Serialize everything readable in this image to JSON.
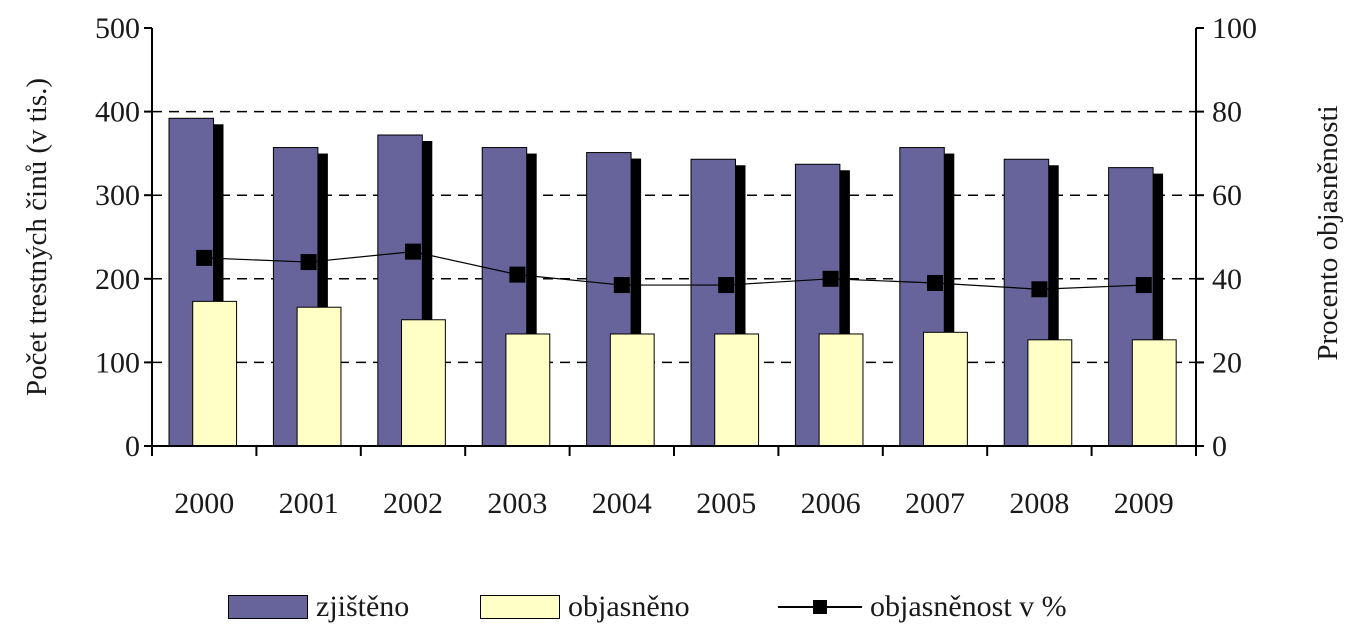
{
  "chart_data": {
    "type": "bar",
    "categories": [
      "2000",
      "2001",
      "2002",
      "2003",
      "2004",
      "2005",
      "2006",
      "2007",
      "2008",
      "2009"
    ],
    "series": [
      {
        "name": "zjištěno",
        "type": "bar",
        "axis": "left",
        "color": "#66649b",
        "values": [
          392,
          357,
          372,
          357,
          351,
          343,
          337,
          357,
          343,
          333
        ]
      },
      {
        "name": "objasněno",
        "type": "bar",
        "axis": "left",
        "color": "#ffffc6",
        "values": [
          173,
          166,
          151,
          134,
          134,
          134,
          134,
          136,
          127,
          127
        ]
      },
      {
        "name": "objasněnost v %",
        "type": "line",
        "axis": "right",
        "color": "#000000",
        "values": [
          45,
          44,
          46.5,
          41,
          38.5,
          38.5,
          40,
          39,
          37.5,
          38.5
        ]
      }
    ],
    "ylabel": "Počet trestných činů (v tis.)",
    "y2label": "Procento objasněnosti",
    "xlabel": "",
    "ylim": [
      0,
      500
    ],
    "y2lim": [
      0,
      100
    ],
    "yticks": [
      "0",
      "100",
      "200",
      "300",
      "400",
      "500"
    ],
    "y2ticks": [
      "0",
      "20",
      "40",
      "60",
      "80",
      "100"
    ],
    "grid": "dashed horizontal",
    "legend": "bottom"
  }
}
